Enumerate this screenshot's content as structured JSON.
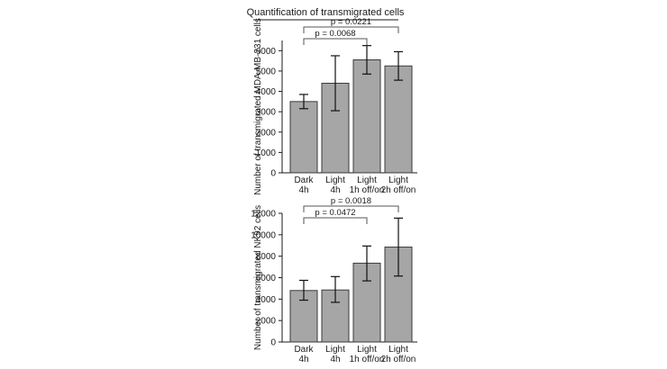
{
  "title": "Quantification of transmigrated cells",
  "colors": {
    "bar_fill": "#a6a6a6",
    "bar_stroke": "#3a3a3a",
    "axis": "#1a1a1a"
  },
  "chart_data": [
    {
      "type": "bar",
      "categories": [
        [
          "Dark",
          "4h"
        ],
        [
          "Light",
          "4h"
        ],
        [
          "Light",
          "1h off/on"
        ],
        [
          "Light",
          "2h off/on"
        ]
      ],
      "values": [
        3500,
        4400,
        5550,
        5250
      ],
      "error_low": [
        3150,
        3050,
        4850,
        4550
      ],
      "error_high": [
        3850,
        5750,
        6250,
        5950
      ],
      "ylabel": "Number of transmigrated MDA-MB-231 cells",
      "ylim": [
        0,
        6500
      ],
      "yticks": [
        0,
        1000,
        2000,
        3000,
        4000,
        5000,
        6000
      ],
      "brackets": [
        {
          "from": 0,
          "to": 2,
          "label": "p = 0.0068"
        },
        {
          "from": 0,
          "to": 3,
          "label": "p = 0.0221"
        }
      ]
    },
    {
      "type": "bar",
      "categories": [
        [
          "Dark",
          "4h"
        ],
        [
          "Light",
          "4h"
        ],
        [
          "Light",
          "1h off/on"
        ],
        [
          "Light",
          "2h off/on"
        ]
      ],
      "values": [
        4800,
        4850,
        7350,
        8850
      ],
      "error_low": [
        3900,
        3700,
        5700,
        6150
      ],
      "error_high": [
        5750,
        6100,
        8950,
        11550
      ],
      "ylabel": "Number of transmigrated NK92 cells",
      "ylim": [
        0,
        12000
      ],
      "yticks": [
        0,
        2000,
        4000,
        6000,
        8000,
        10000,
        12000
      ],
      "brackets": [
        {
          "from": 0,
          "to": 2,
          "label": "p = 0.0472"
        },
        {
          "from": 0,
          "to": 3,
          "label": "p = 0.0018"
        }
      ]
    }
  ]
}
